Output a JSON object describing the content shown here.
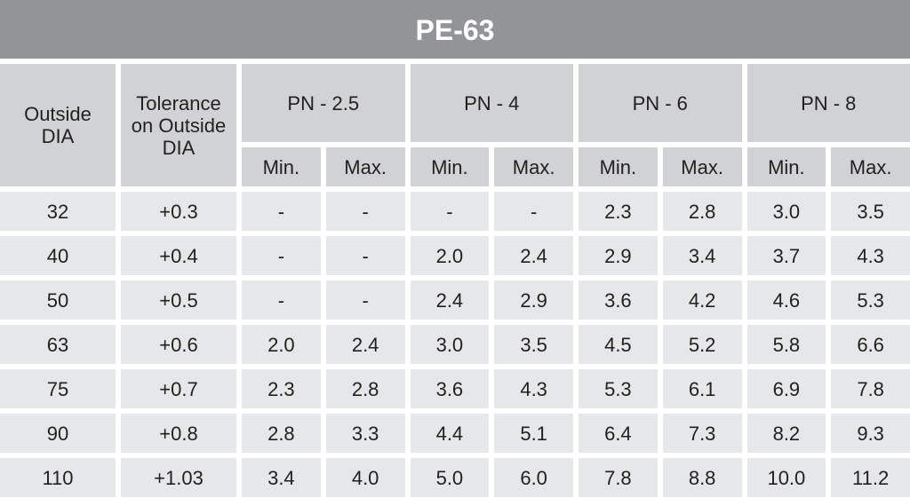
{
  "title": "PE-63",
  "headers": {
    "outside_dia": "Outside DIA",
    "tolerance": "Tolerance on Outside DIA",
    "groups": [
      "PN - 2.5",
      "PN - 4",
      "PN - 6",
      "PN - 8"
    ],
    "sub": [
      "Min.",
      "Max.",
      "Min.",
      "Max.",
      "Min.",
      "Max.",
      "Min.",
      "Max."
    ]
  },
  "rows": [
    [
      "32",
      "+0.3",
      "-",
      "-",
      "-",
      "-",
      "2.3",
      "2.8",
      "3.0",
      "3.5"
    ],
    [
      "40",
      "+0.4",
      "-",
      "-",
      "2.0",
      "2.4",
      "2.9",
      "3.4",
      "3.7",
      "4.3"
    ],
    [
      "50",
      "+0.5",
      "-",
      "-",
      "2.4",
      "2.9",
      "3.6",
      "4.2",
      "4.6",
      "5.3"
    ],
    [
      "63",
      "+0.6",
      "2.0",
      "2.4",
      "3.0",
      "3.5",
      "4.5",
      "5.2",
      "5.8",
      "6.6"
    ],
    [
      "75",
      "+0.7",
      "2.3",
      "2.8",
      "3.6",
      "4.3",
      "5.3",
      "6.1",
      "6.9",
      "7.8"
    ],
    [
      "90",
      "+0.8",
      "2.8",
      "3.3",
      "4.4",
      "5.1",
      "6.4",
      "7.3",
      "8.2",
      "9.3"
    ],
    [
      "110",
      "+1.03",
      "3.4",
      "4.0",
      "5.0",
      "6.0",
      "7.8",
      "8.8",
      "10.0",
      "11.2"
    ]
  ],
  "colors": {
    "title_bg": "#939497",
    "header_bg": "#d1d2d4",
    "cell_bg": "#e6e7e8"
  }
}
